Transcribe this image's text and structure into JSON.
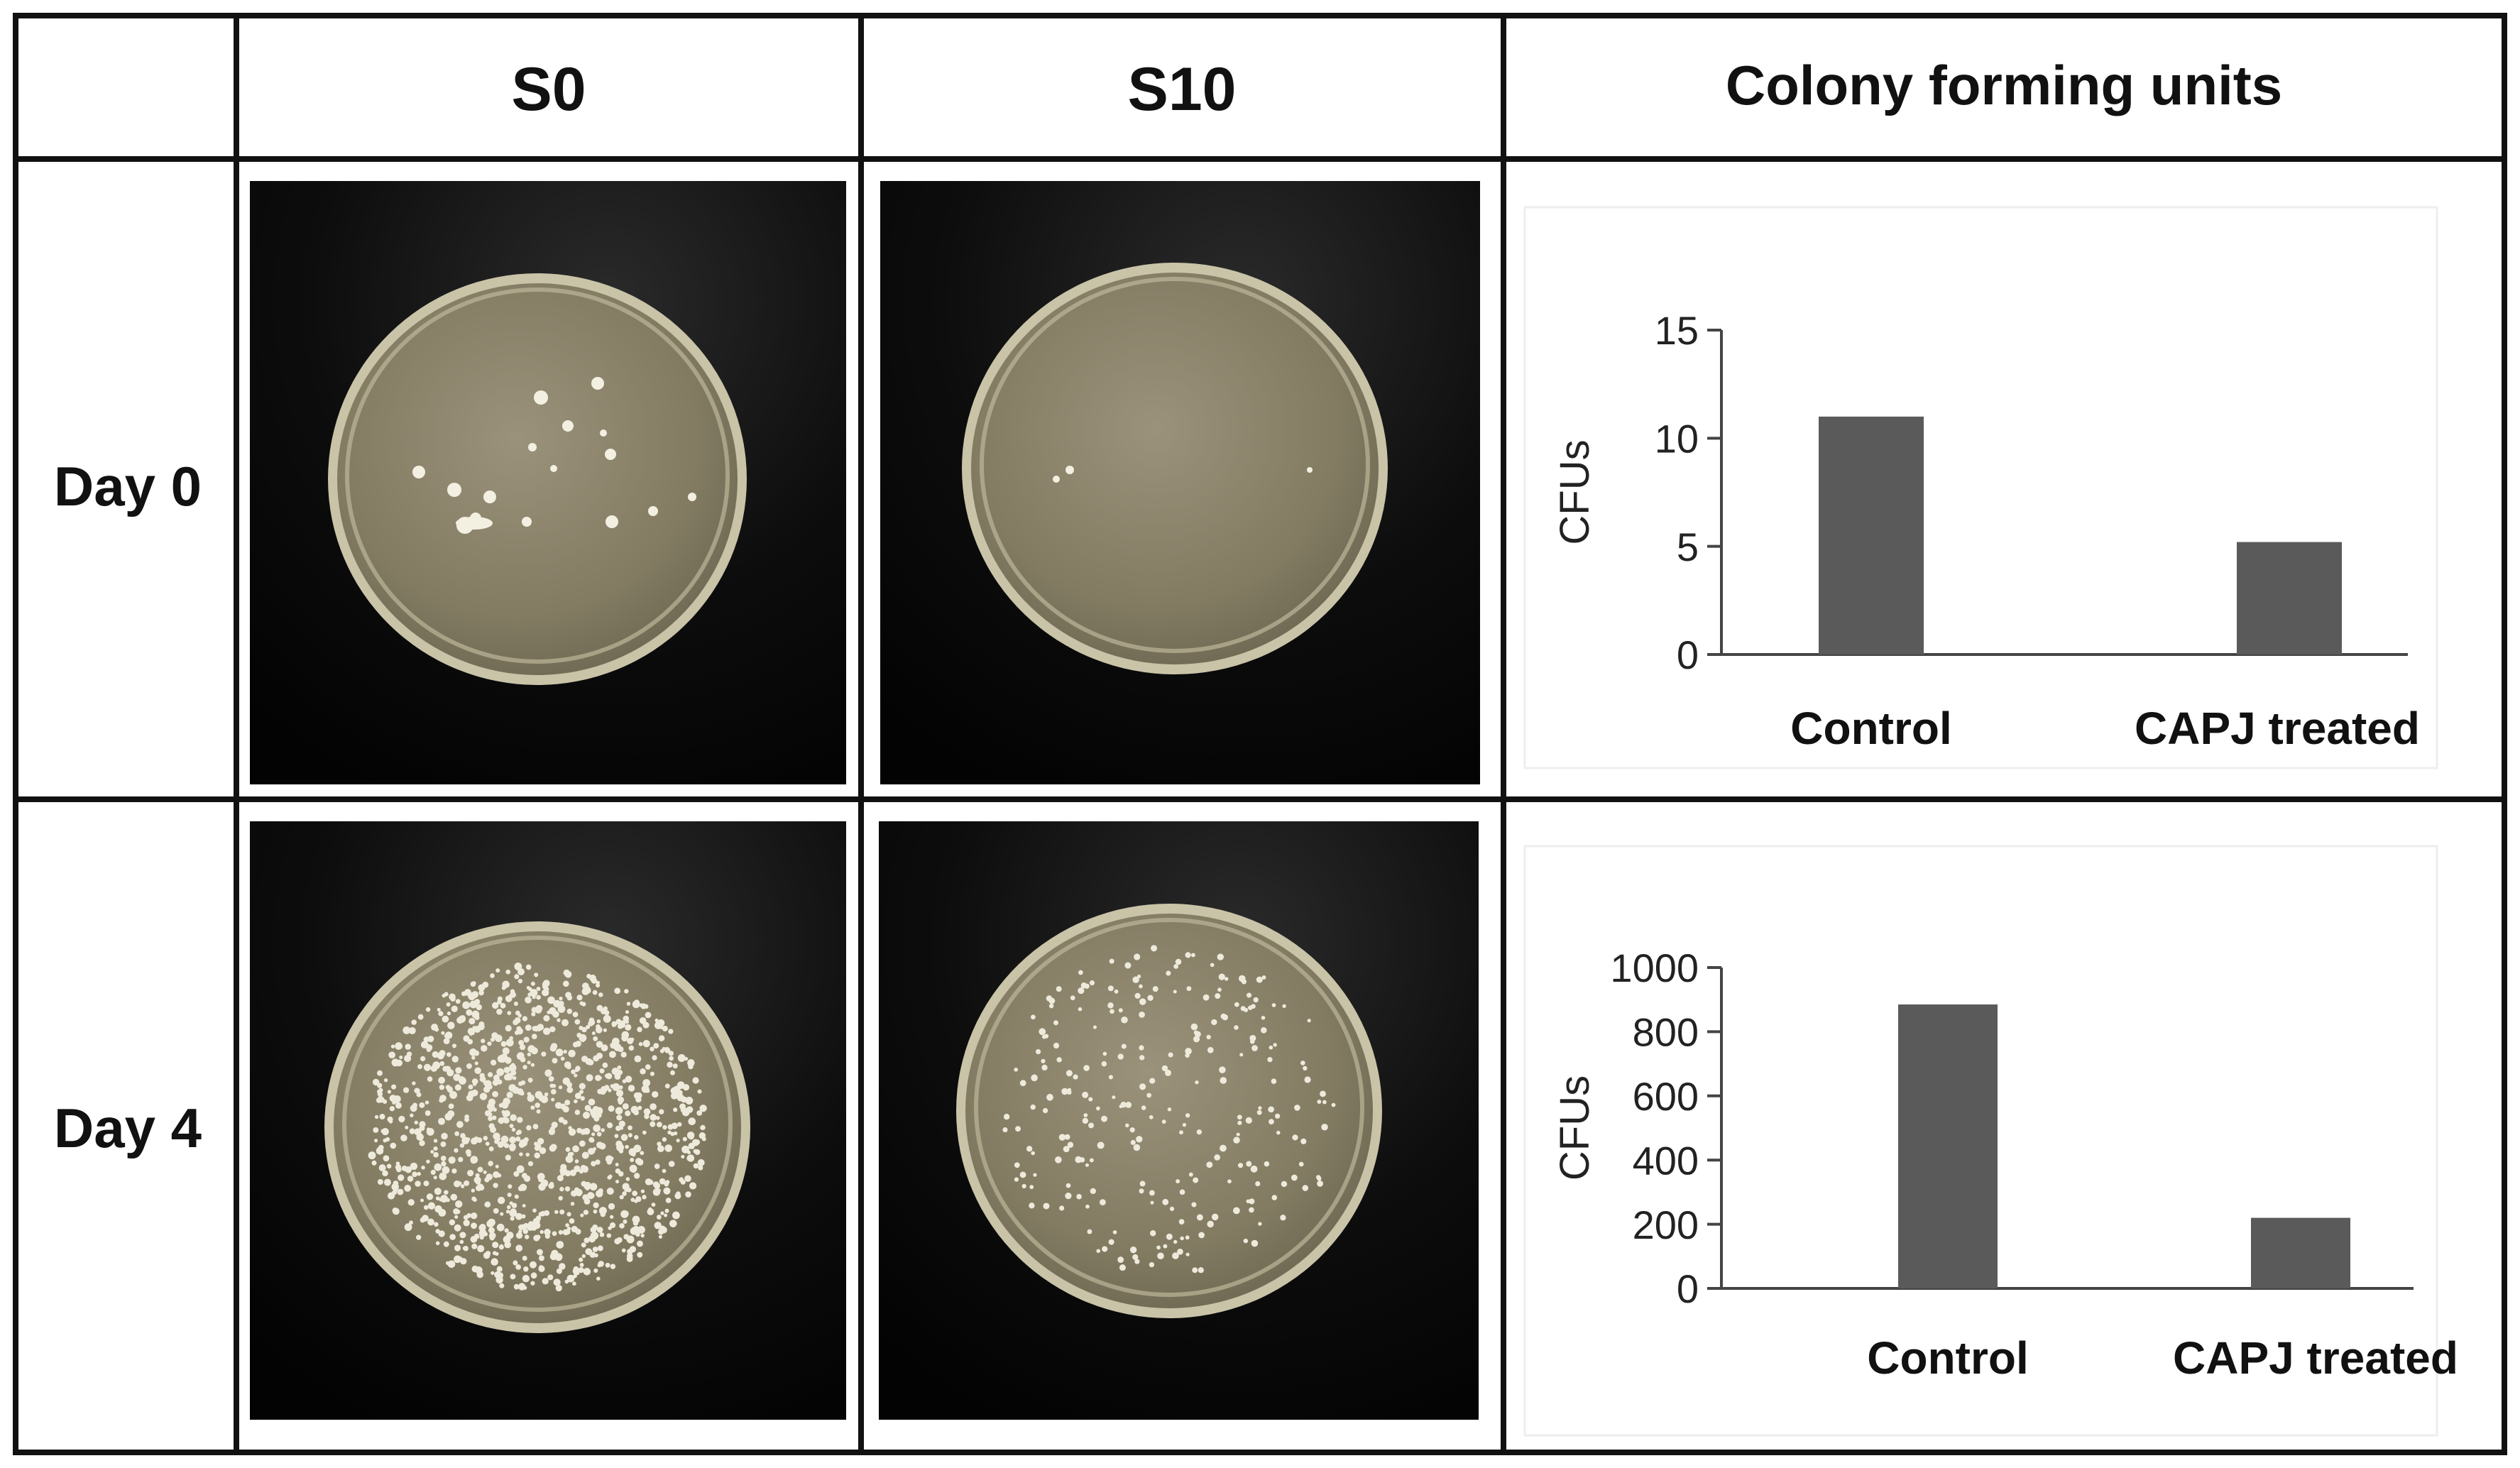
{
  "header": {
    "col1": "S0",
    "col2": "S10",
    "col3": "Colony forming units"
  },
  "rows": [
    {
      "label": "Day 0"
    },
    {
      "label": "Day 4"
    }
  ],
  "plate_photos": [
    {
      "row": "Day 0",
      "column": "S0",
      "colonies_shown": "few"
    },
    {
      "row": "Day 0",
      "column": "S10",
      "colonies_shown": "very few"
    },
    {
      "row": "Day 4",
      "column": "S0",
      "colonies_shown": "dense"
    },
    {
      "row": "Day 4",
      "column": "S10",
      "colonies_shown": "moderate"
    }
  ],
  "colors": {
    "bar": "#5a5a5a",
    "border": "#111111",
    "photo_background": "#050505",
    "agar": "#8a8368"
  },
  "chart_data": [
    {
      "type": "bar",
      "row": "Day 0",
      "categories": [
        "Control",
        "CAPJ treated"
      ],
      "values": [
        11,
        5.2
      ],
      "ylabel": "CFUs",
      "ylim": [
        0,
        15
      ],
      "yticks": [
        0,
        5,
        10,
        15
      ],
      "ytick_labels": [
        "0",
        "5",
        "10",
        "15"
      ],
      "grid": false
    },
    {
      "type": "bar",
      "row": "Day 4",
      "categories": [
        "Control",
        "CAPJ treated"
      ],
      "values": [
        885,
        220
      ],
      "ylabel": "CFUs",
      "ylim": [
        0,
        1000
      ],
      "yticks": [
        0,
        200,
        400,
        600,
        800,
        1000
      ],
      "ytick_labels": [
        "0",
        "200",
        "400",
        "600",
        "800",
        "1000"
      ],
      "grid": false
    }
  ]
}
